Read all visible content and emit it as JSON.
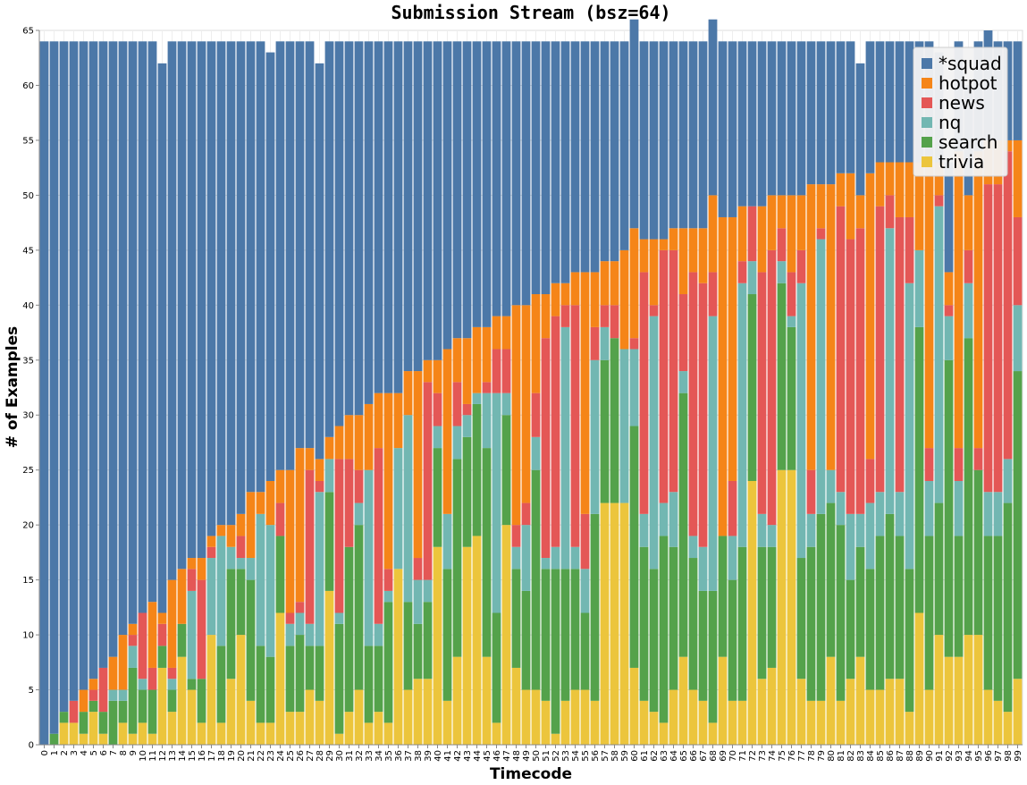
{
  "chart_data": {
    "type": "bar",
    "stacked": true,
    "title": "Submission Stream (bsz=64)",
    "xlabel": "Timecode",
    "ylabel": "# of Examples",
    "ylim": [
      0,
      65
    ],
    "yticks": [
      0,
      5,
      10,
      15,
      20,
      25,
      30,
      35,
      40,
      45,
      50,
      55,
      60,
      65
    ],
    "grid": true,
    "legend_position": "top-right",
    "categories": [
      "0",
      "1",
      "2",
      "3",
      "4",
      "5",
      "6",
      "7",
      "8",
      "9",
      "10",
      "11",
      "12",
      "13",
      "14",
      "15",
      "16",
      "17",
      "18",
      "19",
      "20",
      "21",
      "22",
      "23",
      "24",
      "25",
      "26",
      "27",
      "28",
      "29",
      "30",
      "31",
      "32",
      "33",
      "34",
      "35",
      "36",
      "37",
      "38",
      "39",
      "40",
      "41",
      "42",
      "43",
      "44",
      "45",
      "46",
      "47",
      "48",
      "49",
      "50",
      "51",
      "52",
      "53",
      "54",
      "55",
      "56",
      "57",
      "58",
      "59",
      "60",
      "61",
      "62",
      "63",
      "64",
      "65",
      "66",
      "67",
      "68",
      "69",
      "70",
      "71",
      "72",
      "73",
      "74",
      "75",
      "76",
      "77",
      "78",
      "79",
      "80",
      "81",
      "82",
      "83",
      "84",
      "85",
      "86",
      "87",
      "88",
      "89",
      "90",
      "91",
      "92",
      "93",
      "94",
      "95",
      "96",
      "97",
      "98",
      "99"
    ],
    "series": [
      {
        "name": "trivia",
        "color": "#ECC53C",
        "values": [
          0,
          0,
          2,
          2,
          1,
          3,
          1,
          0,
          2,
          1,
          2,
          1,
          7,
          3,
          8,
          5,
          2,
          10,
          2,
          6,
          10,
          4,
          2,
          2,
          12,
          3,
          3,
          5,
          4,
          14,
          1,
          3,
          5,
          2,
          3,
          2,
          16,
          5,
          6,
          6,
          18,
          4,
          8,
          18,
          19,
          8,
          2,
          20,
          7,
          5,
          5,
          4,
          1,
          4,
          5,
          5,
          4,
          22,
          22,
          22,
          7,
          4,
          3,
          2,
          5,
          8,
          5,
          4,
          2,
          8,
          4,
          4,
          24,
          6,
          7,
          25,
          25,
          6,
          4,
          4,
          8,
          4,
          6,
          8,
          5,
          5,
          6,
          6,
          3,
          12,
          5,
          10,
          8,
          8,
          10,
          10,
          5,
          4,
          3,
          6
        ]
      },
      {
        "name": "search",
        "color": "#54A24B",
        "values": [
          0,
          1,
          1,
          0,
          2,
          1,
          2,
          4,
          2,
          6,
          3,
          4,
          2,
          2,
          3,
          1,
          4,
          0,
          7,
          10,
          6,
          11,
          7,
          6,
          7,
          6,
          7,
          4,
          5,
          9,
          10,
          15,
          15,
          7,
          6,
          11,
          0,
          8,
          5,
          7,
          9,
          12,
          18,
          10,
          12,
          19,
          10,
          10,
          9,
          9,
          20,
          12,
          15,
          12,
          11,
          7,
          17,
          13,
          15,
          0,
          22,
          14,
          13,
          17,
          13,
          24,
          12,
          10,
          12,
          11,
          11,
          14,
          17,
          12,
          11,
          17,
          13,
          11,
          14,
          17,
          14,
          16,
          9,
          10,
          11,
          14,
          15,
          13,
          13,
          26,
          14,
          12,
          27,
          11,
          27,
          15,
          14,
          15,
          19,
          28
        ]
      },
      {
        "name": "nq",
        "color": "#72B7B2",
        "values": [
          0,
          0,
          0,
          0,
          0,
          0,
          0,
          1,
          1,
          2,
          1,
          0,
          0,
          1,
          0,
          8,
          0,
          7,
          10,
          2,
          1,
          2,
          12,
          12,
          0,
          2,
          2,
          2,
          14,
          3,
          1,
          0,
          2,
          16,
          2,
          1,
          11,
          17,
          4,
          2,
          2,
          5,
          3,
          2,
          1,
          5,
          20,
          2,
          2,
          6,
          3,
          1,
          2,
          22,
          2,
          4,
          14,
          3,
          0,
          14,
          7,
          3,
          23,
          3,
          5,
          2,
          2,
          4,
          25,
          0,
          4,
          24,
          3,
          3,
          2,
          2,
          1,
          25,
          3,
          25,
          3,
          3,
          6,
          3,
          6,
          4,
          26,
          4,
          26,
          7,
          5,
          27,
          4,
          5,
          5,
          0,
          4,
          4,
          4,
          6
        ]
      },
      {
        "name": "news",
        "color": "#E45756",
        "values": [
          0,
          0,
          0,
          2,
          0,
          1,
          4,
          0,
          0,
          1,
          6,
          2,
          2,
          1,
          0,
          2,
          9,
          1,
          0,
          0,
          2,
          0,
          0,
          0,
          3,
          1,
          1,
          14,
          1,
          0,
          14,
          8,
          3,
          0,
          16,
          2,
          0,
          0,
          2,
          18,
          3,
          0,
          4,
          1,
          0,
          1,
          4,
          4,
          2,
          2,
          4,
          20,
          21,
          2,
          22,
          5,
          3,
          2,
          3,
          0,
          1,
          22,
          1,
          23,
          22,
          7,
          24,
          24,
          4,
          0,
          5,
          2,
          5,
          22,
          25,
          3,
          4,
          3,
          4,
          1,
          0,
          26,
          25,
          26,
          4,
          26,
          3,
          25,
          6,
          0,
          3,
          1,
          1,
          3,
          3,
          2,
          28,
          28,
          28,
          8
        ]
      },
      {
        "name": "hotpot",
        "color": "#F58518",
        "values": [
          0,
          0,
          0,
          0,
          2,
          1,
          0,
          3,
          5,
          1,
          0,
          6,
          1,
          8,
          5,
          1,
          2,
          1,
          1,
          2,
          2,
          6,
          2,
          4,
          3,
          13,
          14,
          2,
          2,
          2,
          3,
          4,
          5,
          6,
          5,
          16,
          5,
          4,
          17,
          2,
          3,
          15,
          4,
          6,
          6,
          5,
          3,
          3,
          20,
          18,
          9,
          4,
          3,
          2,
          3,
          22,
          5,
          4,
          4,
          9,
          10,
          3,
          6,
          1,
          2,
          6,
          4,
          5,
          7,
          29,
          24,
          5,
          0,
          6,
          5,
          3,
          7,
          5,
          26,
          4,
          26,
          3,
          6,
          3,
          26,
          4,
          3,
          5,
          5,
          8,
          26,
          3,
          3,
          27,
          5,
          27,
          4,
          4,
          1,
          7
        ]
      },
      {
        "name": "*squad",
        "color": "#4C78A8",
        "values": [
          64,
          63,
          61,
          60,
          59,
          58,
          57,
          56,
          54,
          53,
          52,
          51,
          50,
          49,
          48,
          47,
          47,
          45,
          44,
          44,
          43,
          41,
          41,
          39,
          39,
          39,
          37,
          37,
          36,
          36,
          35,
          34,
          34,
          33,
          32,
          32,
          32,
          30,
          30,
          29,
          29,
          28,
          27,
          27,
          26,
          26,
          25,
          25,
          24,
          24,
          23,
          23,
          22,
          22,
          21,
          21,
          21,
          20,
          20,
          19,
          19,
          18,
          18,
          18,
          17,
          17,
          17,
          17,
          16,
          16,
          16,
          15,
          15,
          15,
          14,
          14,
          14,
          14,
          13,
          13,
          13,
          12,
          12,
          12,
          12,
          11,
          11,
          11,
          11,
          11,
          11,
          10,
          10,
          10,
          10,
          10,
          10,
          9,
          9,
          9
        ]
      }
    ]
  }
}
